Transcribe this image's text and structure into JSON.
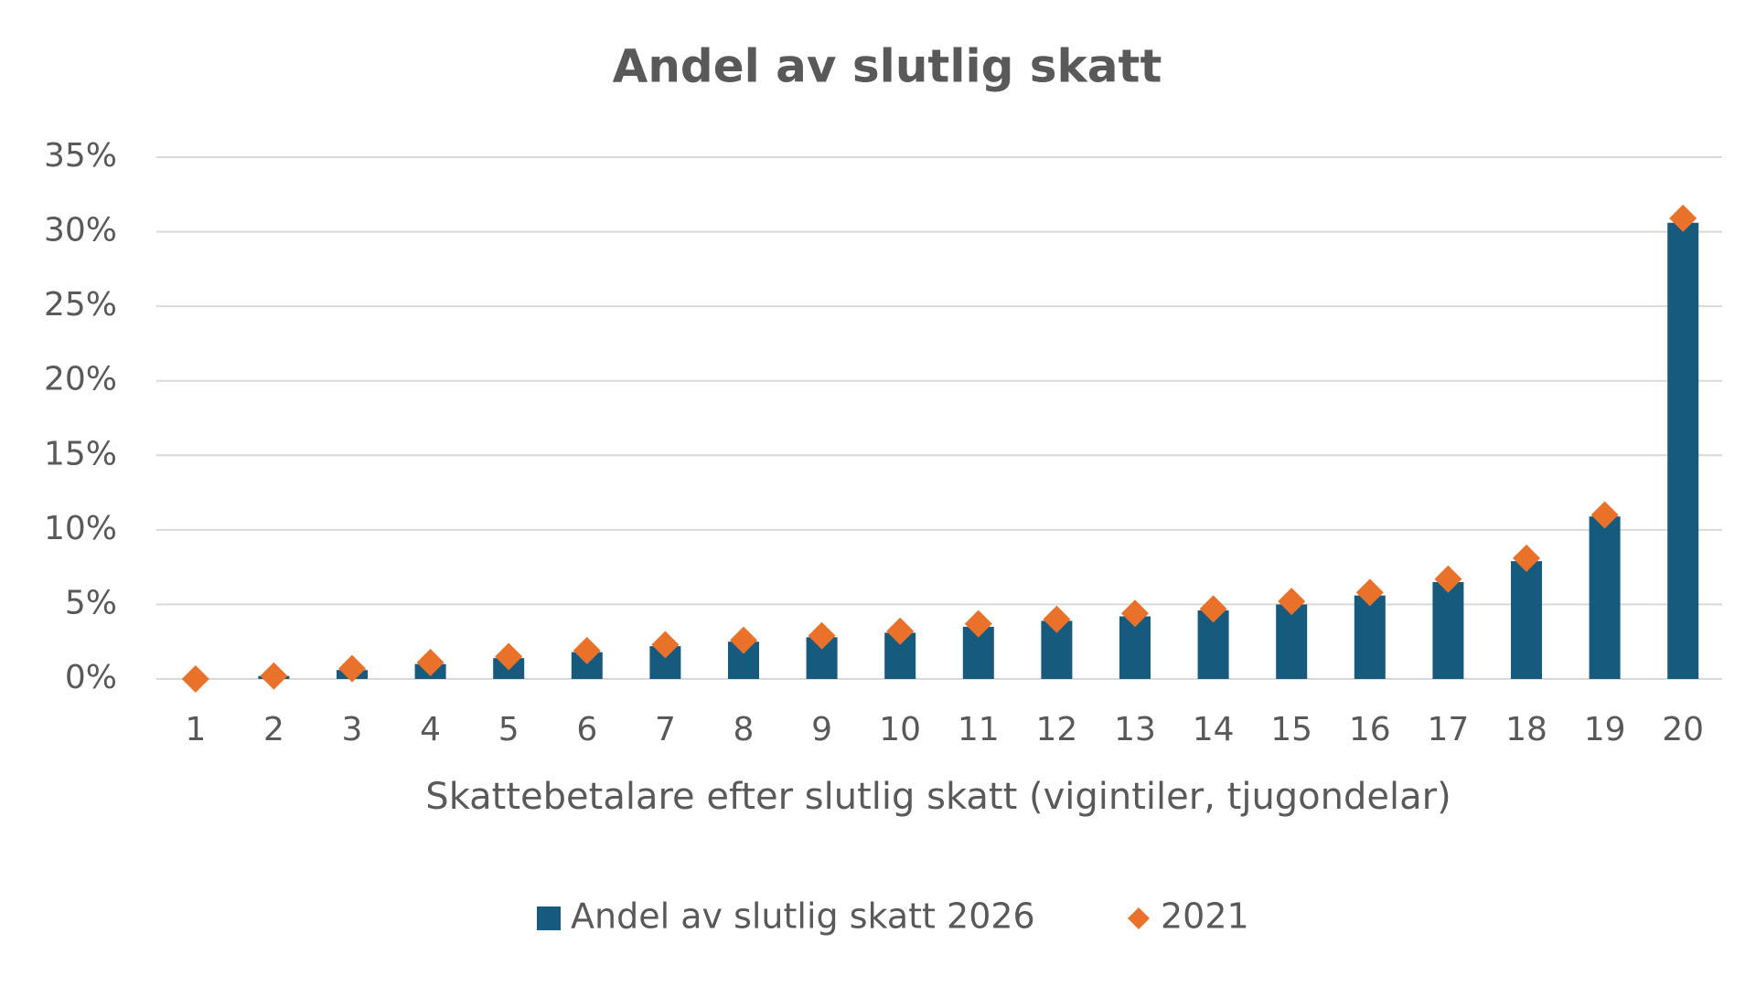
{
  "chart_data": {
    "type": "bar",
    "title": "Andel av slutlig skatt",
    "x_label": "Skattebetalare efter slutlig skatt (vigintiler, tjugondelar)",
    "categories": [
      "1",
      "2",
      "3",
      "4",
      "5",
      "6",
      "7",
      "8",
      "9",
      "10",
      "11",
      "12",
      "13",
      "14",
      "15",
      "16",
      "17",
      "18",
      "19",
      "20"
    ],
    "series": [
      {
        "name": "Andel av slutlig skatt 2026",
        "type": "bar",
        "color": "#165a7e",
        "values": [
          0.0,
          0.2,
          0.6,
          1.0,
          1.4,
          1.8,
          2.2,
          2.5,
          2.8,
          3.1,
          3.5,
          3.9,
          4.2,
          4.6,
          5.0,
          5.6,
          6.5,
          7.9,
          10.9,
          30.6
        ]
      },
      {
        "name": "2021",
        "type": "scatter",
        "color": "#e9712a",
        "values": [
          0.0,
          0.2,
          0.7,
          1.1,
          1.5,
          1.9,
          2.3,
          2.6,
          2.9,
          3.2,
          3.7,
          4.0,
          4.4,
          4.7,
          5.2,
          5.8,
          6.7,
          8.1,
          11.0,
          30.9
        ]
      }
    ],
    "ylim": [
      0,
      35
    ],
    "yticks": [
      {
        "value": 0,
        "label": "0%"
      },
      {
        "value": 5,
        "label": "5%"
      },
      {
        "value": 10,
        "label": "10%"
      },
      {
        "value": 15,
        "label": "15%"
      },
      {
        "value": 20,
        "label": "20%"
      },
      {
        "value": 25,
        "label": "25%"
      },
      {
        "value": 30,
        "label": "30%"
      },
      {
        "value": 35,
        "label": "35%"
      }
    ],
    "grid": true,
    "legend": "bottom"
  }
}
